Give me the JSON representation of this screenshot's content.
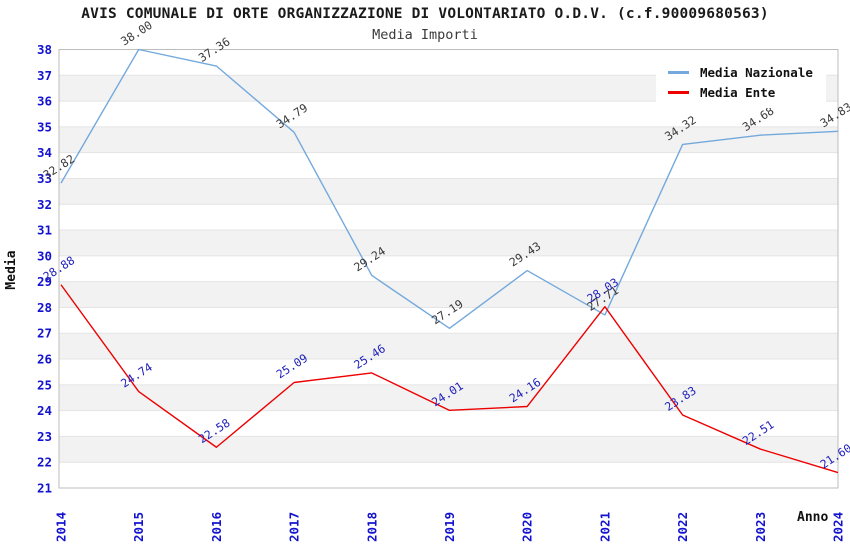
{
  "chart_data": {
    "type": "line",
    "title": "AVIS COMUNALE DI ORTE ORGANIZZAZIONE DI VOLONTARIATO O.D.V. (c.f.90009680563)",
    "subtitle": "Media Importi",
    "xlabel": "Anno",
    "ylabel": "Media",
    "x": [
      2014,
      2015,
      2016,
      2017,
      2018,
      2019,
      2020,
      2021,
      2022,
      2023,
      2024
    ],
    "ylim": [
      21,
      38
    ],
    "y_tick_step": 1,
    "grid": "horizontal gridlines with alternating white/grey bands",
    "legend_position": "top-right",
    "series": [
      {
        "name": "Media Nazionale",
        "color": "#74a9dc",
        "label_color": "#3a3a3a",
        "values": [
          32.82,
          38.0,
          37.36,
          34.79,
          29.24,
          27.19,
          29.43,
          27.71,
          34.32,
          34.68,
          34.83
        ]
      },
      {
        "name": "Media Ente",
        "color": "#ee0000",
        "label_color": "#2222bb",
        "values": [
          28.88,
          24.74,
          22.58,
          25.09,
          25.46,
          24.01,
          24.16,
          28.03,
          23.83,
          22.51,
          21.6
        ]
      }
    ],
    "colors": {
      "axis_tick": "#1212d0",
      "band_grey": "#f2f2f2",
      "gridline": "#e4e4e4",
      "plot_border": "#bdbdbd",
      "background": "#ffffff"
    }
  }
}
